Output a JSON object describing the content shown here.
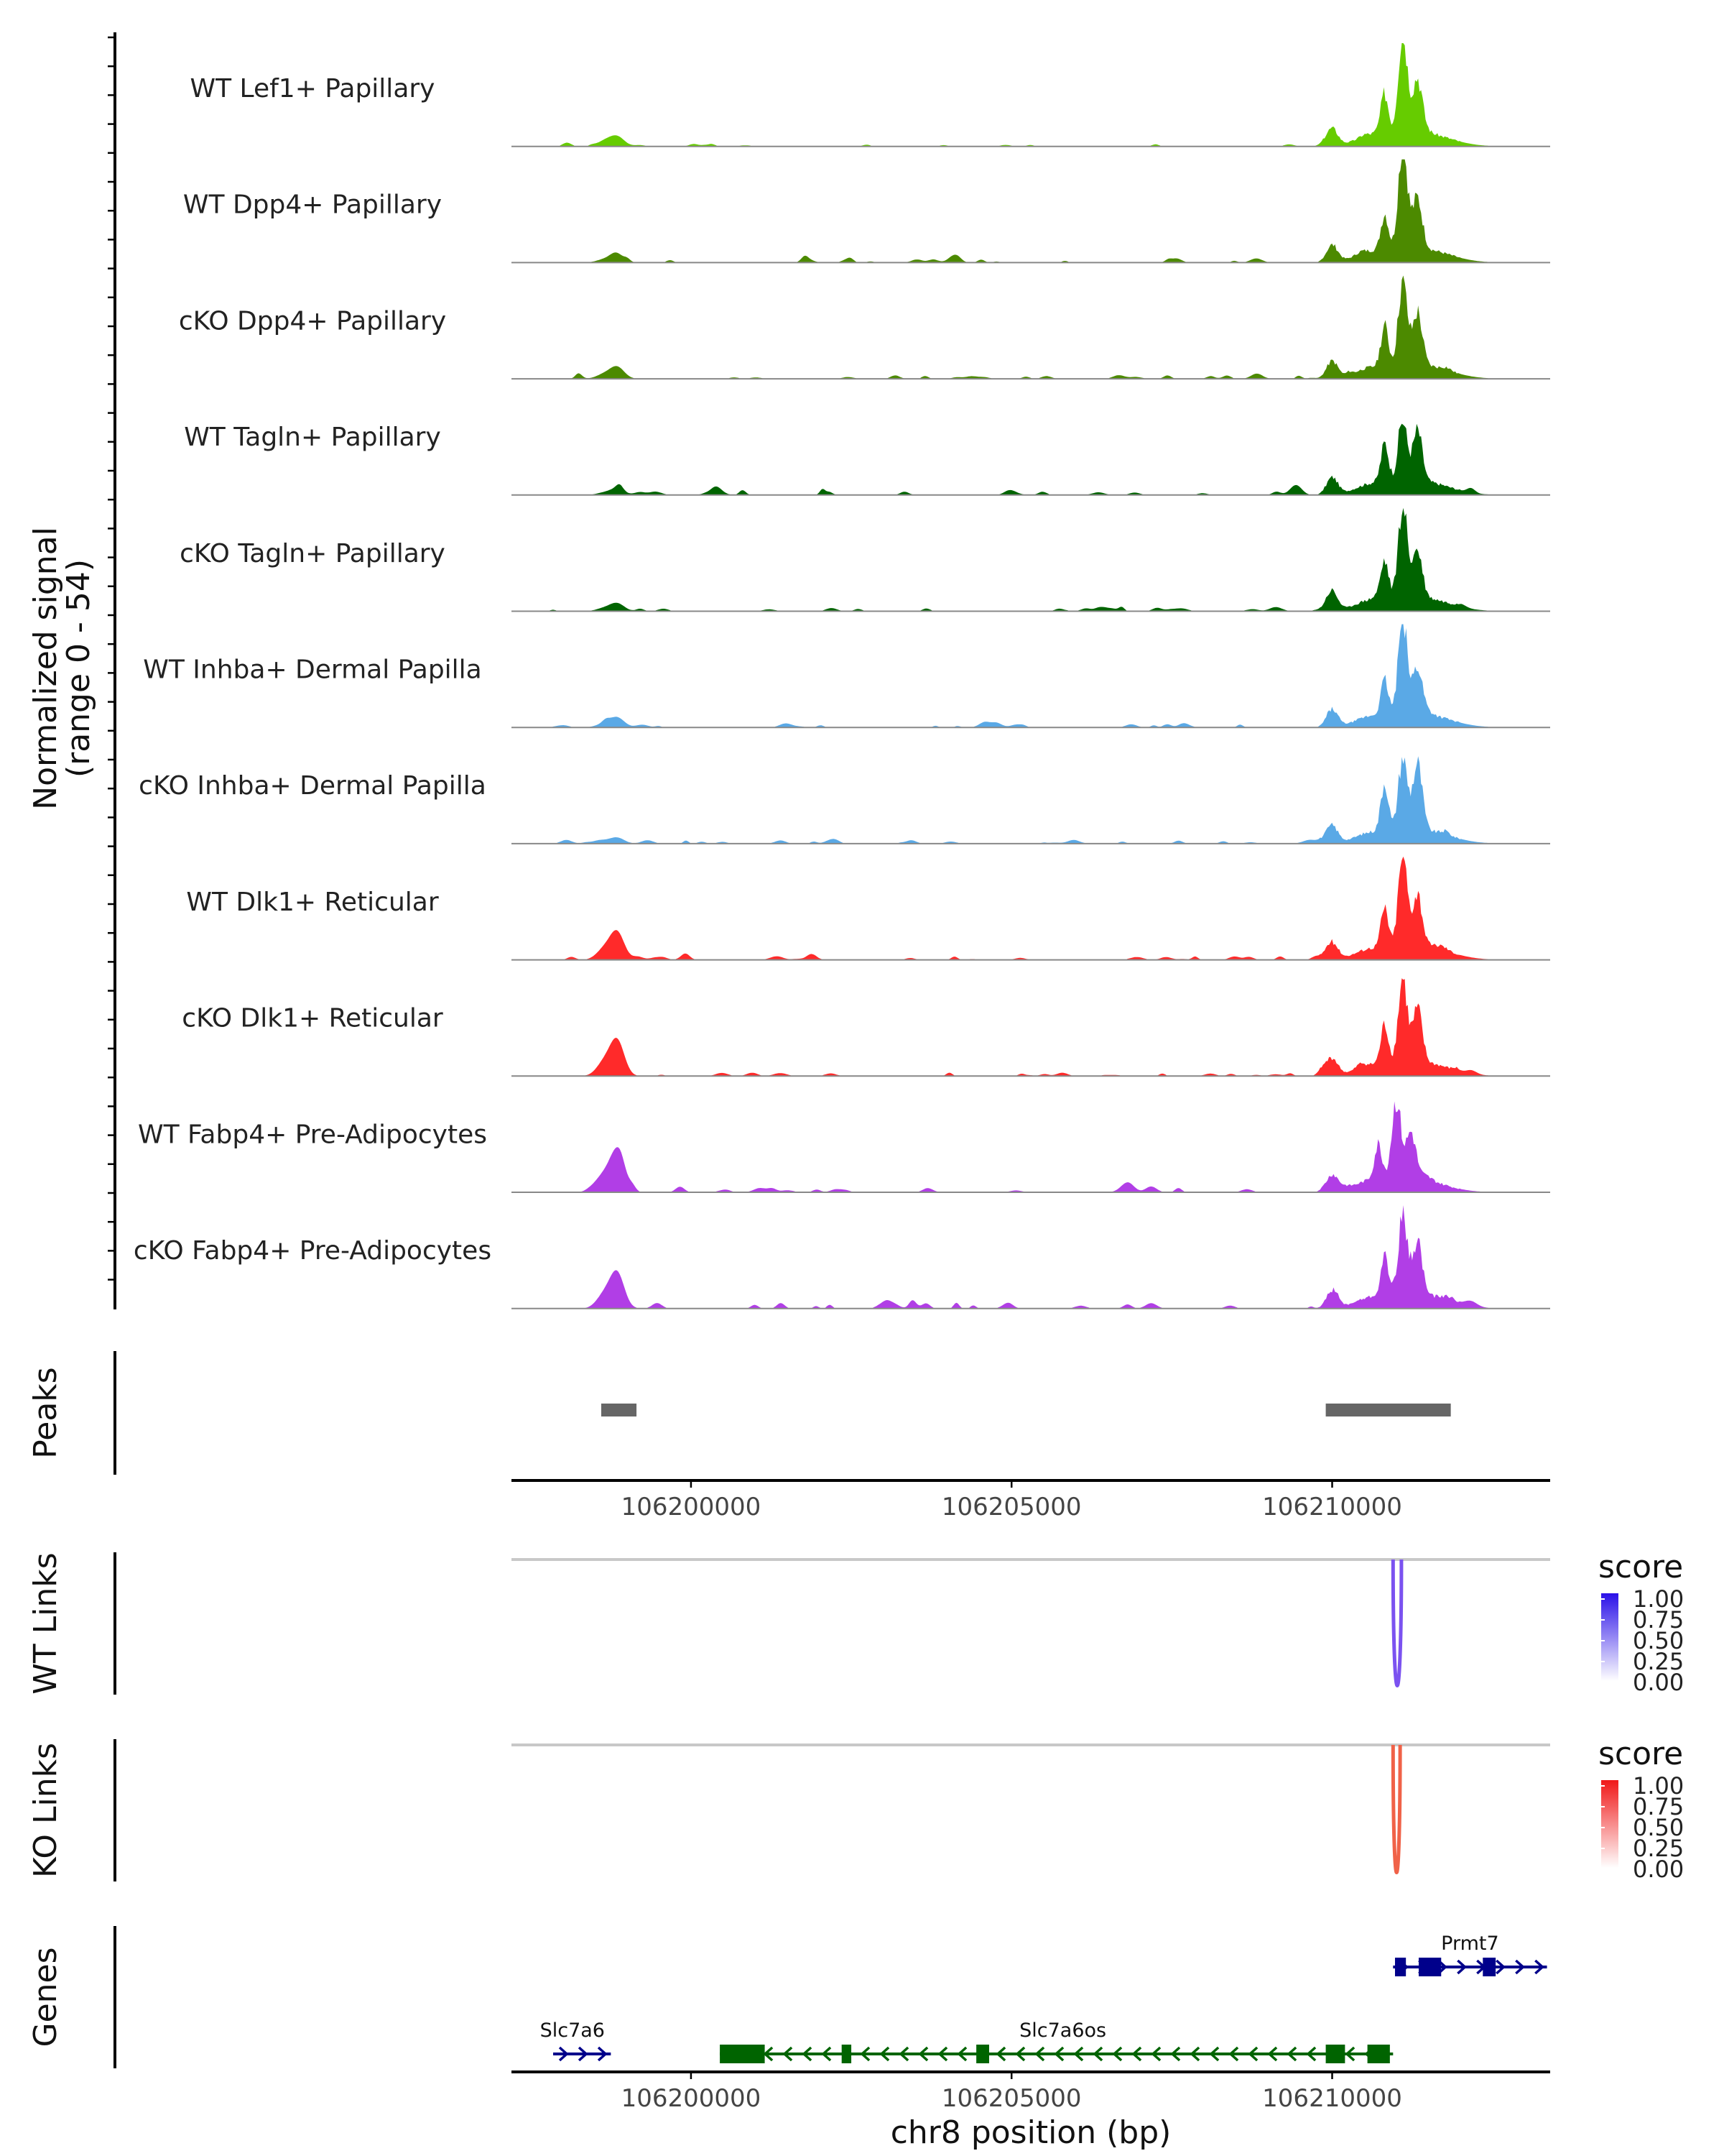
{
  "colors": {
    "lime": "#66cc00",
    "olive": "#4c8a00",
    "darkgreen": "#006400",
    "skyblue": "#5aa9e6",
    "red": "#ff2a2a",
    "purple": "#b13ee6",
    "peak": "#666666",
    "baseline": "#888888",
    "wt_link": "#7b52f0",
    "ko_link": "#f06248",
    "gene_plus": "#00008b",
    "gene_minus": "#006400"
  },
  "chart_data": {
    "type": "area",
    "region": "chr8",
    "xlim": [
      106197200,
      106213400
    ],
    "ylabel_line1": "Normalized signal",
    "ylabel_line2": "(range 0 - 54)",
    "ylim": [
      0,
      54
    ],
    "xlabel": "chr8 position (bp)",
    "x_ticks": [
      {
        "value": 106200000,
        "label": "106200000"
      },
      {
        "value": 106205000,
        "label": "106205000"
      },
      {
        "value": 106210000,
        "label": "106210000"
      }
    ],
    "tracks": [
      {
        "name": "WT Lef1+ Papillary",
        "color": "lime",
        "main": 54,
        "mainPos": 106211100,
        "second": 28,
        "lowScale": 0.4,
        "leftPeak": 5,
        "seed": 3
      },
      {
        "name": "WT Dpp4+ Papillary",
        "color": "olive",
        "main": 54,
        "mainPos": 106211100,
        "second": 26,
        "lowScale": 0.8,
        "leftPeak": 4,
        "seed": 7
      },
      {
        "name": "cKO Dpp4+ Papillary",
        "color": "olive",
        "main": 45,
        "mainPos": 106211100,
        "second": 28,
        "lowScale": 0.7,
        "leftPeak": 6,
        "seed": 11
      },
      {
        "name": "WT Tagln+ Papillary",
        "color": "darkgreen",
        "main": 32,
        "mainPos": 106211100,
        "second": 24,
        "lowScale": 1.2,
        "leftPeak": 3,
        "seed": 17
      },
      {
        "name": "cKO Tagln+ Papillary",
        "color": "darkgreen",
        "main": 50,
        "mainPos": 106211100,
        "second": 24,
        "lowScale": 0.8,
        "leftPeak": 4,
        "seed": 23
      },
      {
        "name": "WT Inhba+ Dermal Papilla",
        "color": "skyblue",
        "main": 51,
        "mainPos": 106211100,
        "second": 25,
        "lowScale": 0.6,
        "leftPeak": 5,
        "seed": 29
      },
      {
        "name": "cKO Inhba+ Dermal Papilla",
        "color": "skyblue",
        "main": 39,
        "mainPos": 106211100,
        "second": 35,
        "lowScale": 0.7,
        "leftPeak": 3,
        "seed": 31
      },
      {
        "name": "WT Dlk1+ Reticular",
        "color": "red",
        "main": 48,
        "mainPos": 106211100,
        "second": 28,
        "lowScale": 0.7,
        "leftPeak": 14,
        "seed": 37
      },
      {
        "name": "cKO Dlk1+ Reticular",
        "color": "red",
        "main": 45,
        "mainPos": 106211100,
        "second": 28,
        "lowScale": 0.7,
        "leftPeak": 18,
        "seed": 41
      },
      {
        "name": "WT Fabp4+ Pre-Adipocytes",
        "color": "purple",
        "main": 37,
        "mainPos": 106211000,
        "second": 24,
        "lowScale": 1.1,
        "leftPeak": 20,
        "seed": 43
      },
      {
        "name": "cKO Fabp4+ Pre-Adipocytes",
        "color": "purple",
        "main": 42,
        "mainPos": 106211100,
        "second": 28,
        "lowScale": 1.1,
        "leftPeak": 18,
        "seed": 47
      }
    ],
    "peaks_label": "Peaks",
    "peaks": [
      {
        "start": 106198600,
        "end": 106199150
      },
      {
        "start": 106209900,
        "end": 106211850
      }
    ],
    "links": [
      {
        "label": "WT Links",
        "color": "wt_link",
        "start": 106210950,
        "end": 106211080,
        "score": 1.0
      },
      {
        "label": "KO Links",
        "color": "ko_link",
        "start": 106210950,
        "end": 106211060,
        "score": 1.0
      }
    ],
    "legend": {
      "title": "score",
      "ticks": [
        "1.00",
        "0.75",
        "0.50",
        "0.25",
        "0.00"
      ]
    },
    "genes_label": "Genes",
    "genes": [
      {
        "name": "Prmt7",
        "strand": "+",
        "row": 0,
        "start": 106210950,
        "end": 106213350,
        "exons": [
          [
            106210980,
            106211150
          ],
          [
            106211350,
            106211700
          ],
          [
            106212350,
            106212550
          ]
        ]
      },
      {
        "name": "Slc7a6",
        "strand": "+",
        "row": 1,
        "start": 106197850,
        "end": 106198750,
        "exons": []
      },
      {
        "name": "Slc7a6os",
        "strand": "-",
        "row": 1,
        "start": 106200450,
        "end": 106210950,
        "exons": [
          [
            106200450,
            106201150
          ],
          [
            106202350,
            106202500
          ],
          [
            106204450,
            106204650
          ],
          [
            106209900,
            106210200
          ],
          [
            106210550,
            106210900
          ]
        ]
      }
    ]
  }
}
